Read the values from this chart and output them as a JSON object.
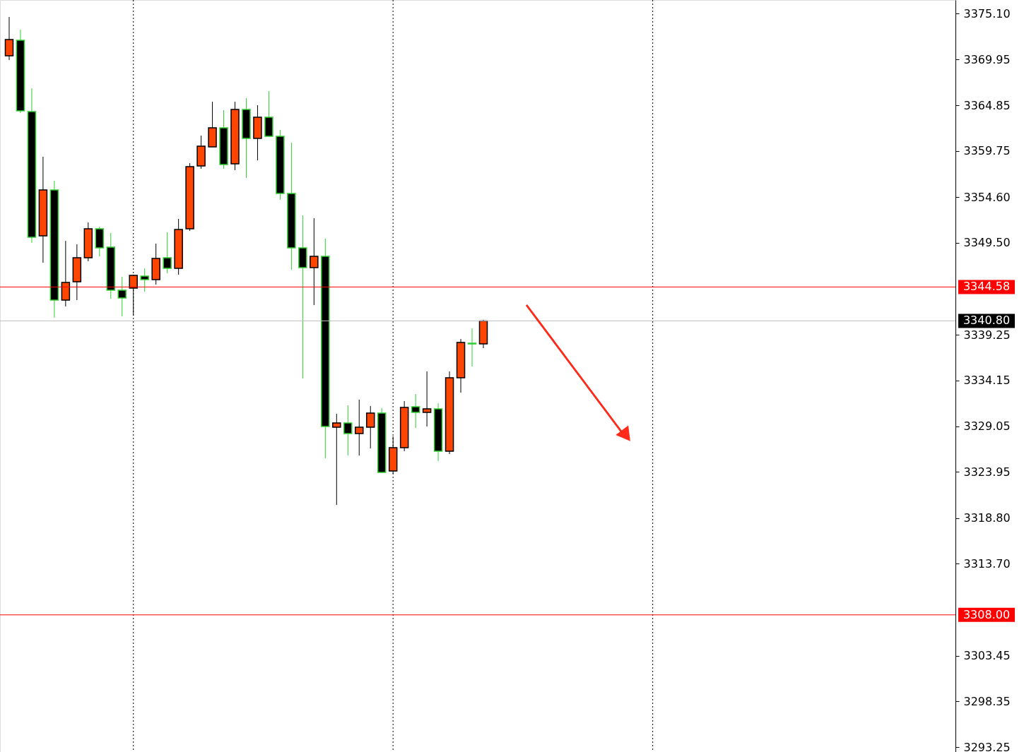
{
  "chart_data": {
    "type": "candlestick",
    "categories": [
      null,
      null,
      null,
      null,
      null,
      null,
      null,
      null,
      null,
      null,
      null,
      null,
      null,
      null,
      null,
      null,
      null,
      null,
      null,
      null,
      null,
      null,
      null,
      null,
      null,
      null,
      null,
      null,
      null,
      null,
      null,
      null,
      null,
      null,
      null,
      null,
      null,
      null,
      null,
      null,
      null,
      null,
      null,
      null,
      null,
      null,
      null,
      null,
      null,
      null,
      null,
      null,
      null,
      null,
      null,
      null,
      null,
      null,
      null,
      null,
      null,
      null,
      null,
      null,
      null,
      null,
      null,
      null,
      null,
      null,
      null,
      null,
      null,
      null,
      null,
      null,
      null,
      null,
      null,
      null,
      null,
      null,
      null,
      null
    ],
    "ohlc": [
      [
        3370.37,
        3374.71,
        3369.9,
        3372.19
      ],
      [
        3372.11,
        3373.29,
        3363.99,
        3364.23
      ],
      [
        3364.15,
        3366.75,
        3349.5,
        3350.13
      ],
      [
        3350.28,
        3359.11,
        3347.29,
        3355.4
      ],
      [
        3355.4,
        3356.43,
        3341.15,
        3343.12
      ],
      [
        3343.12,
        3349.73,
        3342.41,
        3345.08
      ],
      [
        3345.16,
        3349.34,
        3343.12,
        3347.84
      ],
      [
        3347.84,
        3351.78,
        3347.45,
        3351.07
      ],
      [
        3351.07,
        3351.31,
        3348.0,
        3348.95
      ],
      [
        3349.02,
        3350.6,
        3343.27,
        3344.22
      ],
      [
        3344.22,
        3345.72,
        3341.3,
        3343.35
      ],
      [
        3344.45,
        3345.95,
        3341.38,
        3345.87
      ],
      [
        3345.79,
        3346.66,
        3344.06,
        3345.4
      ],
      [
        3345.4,
        3349.42,
        3344.85,
        3347.76
      ],
      [
        3347.84,
        3350.68,
        3346.11,
        3346.66
      ],
      [
        3346.66,
        3352.18,
        3345.95,
        3350.99
      ],
      [
        3351.07,
        3358.4,
        3350.84,
        3358.0
      ],
      [
        3358.08,
        3361.47,
        3357.77,
        3360.29
      ],
      [
        3360.21,
        3365.25,
        3360.21,
        3362.34
      ],
      [
        3362.34,
        3364.31,
        3357.77,
        3358.24
      ],
      [
        3358.32,
        3365.25,
        3357.61,
        3364.39
      ],
      [
        3364.39,
        3365.65,
        3356.74,
        3361.16
      ],
      [
        3361.16,
        3364.86,
        3358.71,
        3363.52
      ],
      [
        3363.52,
        3366.43,
        3361.31,
        3361.39
      ],
      [
        3361.39,
        3362.1,
        3354.3,
        3355.01
      ],
      [
        3355.01,
        3360.68,
        3346.5,
        3348.95
      ],
      [
        3348.95,
        3352.57,
        3334.37,
        3346.74
      ],
      [
        3346.74,
        3352.25,
        3342.56,
        3348.0
      ],
      [
        3348.0,
        3349.97,
        3325.47,
        3329.01
      ],
      [
        3328.93,
        3330.43,
        3320.27,
        3329.41
      ],
      [
        3329.41,
        3331.38,
        3325.78,
        3328.23
      ],
      [
        3328.23,
        3332.01,
        3325.78,
        3328.93
      ],
      [
        3328.93,
        3331.3,
        3326.57,
        3330.51
      ],
      [
        3330.51,
        3331.06,
        3323.81,
        3323.89
      ],
      [
        3324.05,
        3327.91,
        3323.74,
        3326.65
      ],
      [
        3326.65,
        3331.85,
        3326.26,
        3331.14
      ],
      [
        3331.22,
        3332.64,
        3328.86,
        3330.59
      ],
      [
        3330.59,
        3335.16,
        3329.01,
        3330.98
      ],
      [
        3330.98,
        3331.61,
        3325.15,
        3326.26
      ],
      [
        3326.26,
        3335.16,
        3325.94,
        3334.45
      ],
      [
        3334.45,
        3338.78,
        3332.79,
        3338.39
      ],
      [
        3338.31,
        3339.96,
        3335.71,
        3338.23
      ],
      [
        3338.23,
        3340.91,
        3337.76,
        3340.8
      ],
      null,
      null,
      null,
      null,
      null,
      null,
      null,
      null,
      null,
      null,
      null,
      null,
      null,
      null,
      null,
      null,
      null,
      null,
      null,
      null,
      null,
      null,
      null,
      null,
      null,
      null,
      null,
      null,
      null,
      null,
      null,
      null,
      null,
      null,
      null,
      null,
      null,
      null,
      null,
      null,
      null
    ],
    "colors": [
      "#ff4500",
      "#000000",
      "#000000",
      "#ff4500",
      "#000000",
      "#ff4500",
      "#ff4500",
      "#ff4500",
      "#000000",
      "#000000",
      "#000000",
      "#ff4500",
      "#000000",
      "#ff4500",
      "#000000",
      "#ff4500",
      "#ff4500",
      "#ff4500",
      "#ff4500",
      "#000000",
      "#ff4500",
      "#000000",
      "#ff4500",
      "#000000",
      "#000000",
      "#000000",
      "#000000",
      "#ff4500",
      "#000000",
      "#ff4500",
      "#000000",
      "#ff4500",
      "#ff4500",
      "#000000",
      "#ff4500",
      "#ff4500",
      "#000000",
      "#ff4500",
      "#000000",
      "#ff4500",
      "#ff4500",
      "#000000",
      "#ff4500",
      null,
      null,
      null,
      null,
      null,
      null,
      null,
      null,
      null,
      null,
      null,
      null,
      null,
      null,
      null,
      null,
      null,
      null,
      null,
      null,
      null,
      null,
      null,
      null,
      null,
      null,
      null,
      null,
      null,
      null,
      null,
      null,
      null,
      null,
      null,
      null,
      null,
      null,
      null,
      null,
      null
    ],
    "ylim": [
      3292.7,
      3376.6
    ],
    "yticks": [
      {
        "value": 3375.1,
        "label": "3375.10"
      },
      3369.95,
      3364.85,
      3359.75,
      {
        "value": 3354.6,
        "label": "3354.60"
      },
      {
        "value": 3349.5,
        "label": "3349.50"
      },
      3339.25,
      3334.15,
      3329.05,
      3323.95,
      {
        "value": 3318.8,
        "label": "3318.80"
      },
      {
        "value": 3313.7,
        "label": "3313.70"
      },
      3303.45,
      3298.35,
      3293.25
    ],
    "ref_lines": [
      {
        "axis": "y",
        "value": 3344.58,
        "label": "3344.58",
        "color": "#ff0000"
      },
      {
        "axis": "y",
        "value": 3340.8,
        "label": "3340.80",
        "color": "#c0c0c0"
      },
      {
        "axis": "y",
        "value": 3308.0,
        "label": "3308.00",
        "color": "#ff0000"
      }
    ],
    "tick_labels": "y",
    "grid": false
  }
}
